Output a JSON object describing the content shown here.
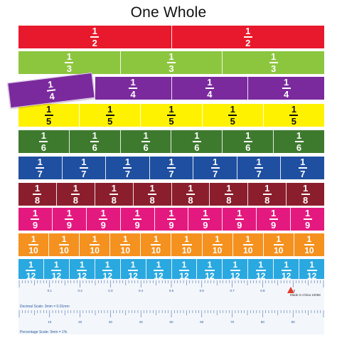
{
  "title": "One Whole",
  "rows": [
    {
      "numerator": "1",
      "denominator": "2",
      "count": 2,
      "color": "#e8192c"
    },
    {
      "numerator": "1",
      "denominator": "3",
      "count": 3,
      "color": "#8cc63f"
    },
    {
      "numerator": "1",
      "denominator": "4",
      "count": 4,
      "color": "#7b2a9e",
      "lifted_piece": 1
    },
    {
      "numerator": "1",
      "denominator": "5",
      "count": 5,
      "color": "#fff200"
    },
    {
      "numerator": "1",
      "denominator": "6",
      "count": 6,
      "color": "#3e7a2e"
    },
    {
      "numerator": "1",
      "denominator": "7",
      "count": 7,
      "color": "#1f4fa0"
    },
    {
      "numerator": "1",
      "denominator": "8",
      "count": 8,
      "color": "#8b1e2c"
    },
    {
      "numerator": "1",
      "denominator": "9",
      "count": 9,
      "color": "#e4197f"
    },
    {
      "numerator": "1",
      "denominator": "10",
      "count": 10,
      "color": "#f5911e"
    },
    {
      "numerator": "1",
      "denominator": "12",
      "count": 12,
      "color": "#2aa8e0"
    }
  ],
  "ruler": {
    "decimal_scale": "Decimal Scale: 3mm = 0.01mm",
    "percentage_scale": "Percentage Scale: 3mm = 1%",
    "decimal_labels": [
      "0.1",
      "0.2",
      "0.3",
      "0.4",
      "0.5",
      "0.6",
      "0.7",
      "0.8",
      "0.9"
    ],
    "percent_labels": [
      "10",
      "20",
      "30",
      "40",
      "50",
      "60",
      "70",
      "80",
      "90"
    ],
    "made_in": "Made in China 10058",
    "tick_color": "#2a5b9c"
  }
}
